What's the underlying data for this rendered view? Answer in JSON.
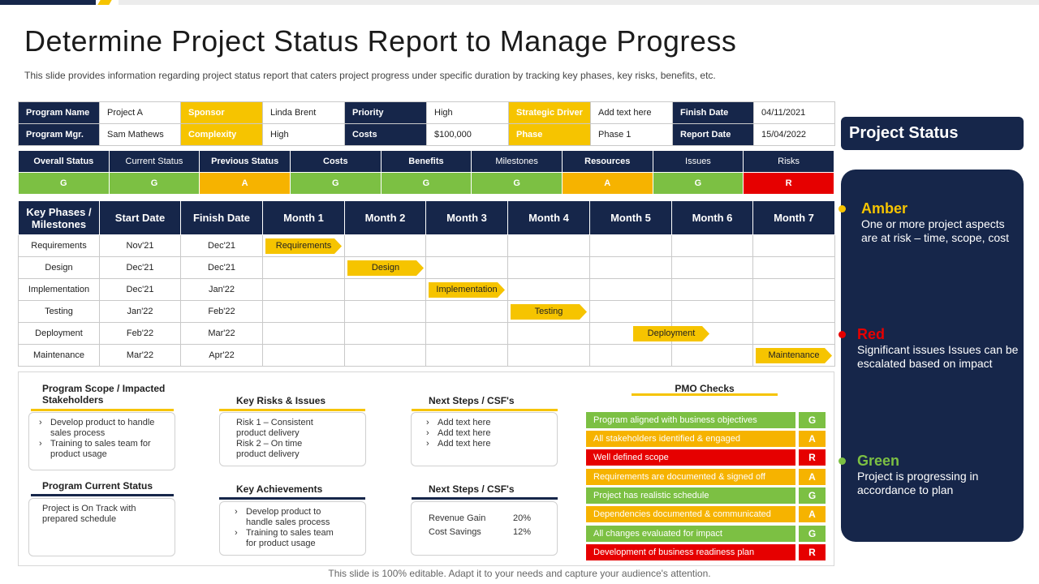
{
  "title": "Determine Project Status Report to Manage Progress",
  "subtitle": "This slide provides  information  regarding  project status report  that caters project progress  under specific duration  by tracking key phases,  key risks, benefits,  etc.",
  "info": {
    "program_name_label": "Program Name",
    "program_name": "Project A",
    "sponsor_label": "Sponsor",
    "sponsor": "Linda Brent",
    "priority_label": "Priority",
    "priority": "High",
    "strategic_driver_label": "Strategic Driver",
    "strategic_driver": "Add text here",
    "finish_date_label": "Finish Date",
    "finish_date": "04/11/2021",
    "program_mgr_label": "Program Mgr.",
    "program_mgr": "Sam Mathews",
    "complexity_label": "Complexity",
    "complexity": "High",
    "costs_label": "Costs",
    "costs": "$100,000",
    "phase_label": "Phase",
    "phase": "Phase 1",
    "report_date_label": "Report Date",
    "report_date": "15/04/2022"
  },
  "status": {
    "headers": [
      "Overall Status",
      "Current Status",
      "Previous Status",
      "Costs",
      "Benefits",
      "Milestones",
      "Resources",
      "Issues",
      "Risks"
    ],
    "values": [
      "G",
      "G",
      "A",
      "G",
      "G",
      "G",
      "A",
      "G",
      "R"
    ]
  },
  "gantt": {
    "headers": [
      "Key Phases / Milestones",
      "Start Date",
      "Finish Date",
      "Month 1",
      "Month 2",
      "Month 3",
      "Month 4",
      "Month 5",
      "Month 6",
      "Month 7"
    ],
    "rows": [
      {
        "phase": "Requirements",
        "start": "Nov'21",
        "finish": "Dec'21",
        "bar": "Requirements"
      },
      {
        "phase": "Design",
        "start": "Dec'21",
        "finish": "Dec'21",
        "bar": "Design"
      },
      {
        "phase": "Implementation",
        "start": "Dec'21",
        "finish": "Jan'22",
        "bar": "Implementation"
      },
      {
        "phase": "Testing",
        "start": "Jan'22",
        "finish": "Feb'22",
        "bar": "Testing"
      },
      {
        "phase": "Deployment",
        "start": "Feb'22",
        "finish": "Mar'22",
        "bar": "Deployment"
      },
      {
        "phase": "Maintenance",
        "start": "Mar'22",
        "finish": "Apr'22",
        "bar": "Maintenance"
      }
    ]
  },
  "bottom": {
    "scope_title": "Program Scope / Impacted Stakeholders",
    "scope_items": [
      "Develop product to handle sales process",
      "Training to sales team for product usage"
    ],
    "current_status_title": "Program Current Status",
    "current_status_text": "Project is On Track with prepared schedule",
    "risks_title": "Key Risks & Issues",
    "risks_text_1": "Risk 1 – Consistent product delivery",
    "risks_text_2": "Risk 2 – On time product delivery",
    "achievements_title": "Key Achievements",
    "achievements_items": [
      "Develop product to handle sales process",
      "Training to sales team for product usage"
    ],
    "next_steps_title": "Next Steps / CSF's",
    "next_steps_items": [
      "Add text here",
      "Add text here",
      "Add text here"
    ],
    "next_steps2_title": "Next Steps / CSF's",
    "kpis": [
      {
        "label": "Revenue Gain",
        "value": "20%"
      },
      {
        "label": "Cost Savings",
        "value": "12%"
      }
    ],
    "pmo_title": "PMO Checks",
    "pmo_checks": [
      {
        "label": "Program aligned with business objectives",
        "status": "G"
      },
      {
        "label": "All stakeholders identified & engaged",
        "status": "A"
      },
      {
        "label": "Well defined scope",
        "status": "R"
      },
      {
        "label": "Requirements are documented & signed off",
        "status": "A"
      },
      {
        "label": "Project has realistic schedule",
        "status": "G"
      },
      {
        "label": "Dependencies documented & communicated",
        "status": "A"
      },
      {
        "label": "All changes evaluated for impact",
        "status": "G"
      },
      {
        "label": "Development of business readiness plan",
        "status": "R"
      }
    ]
  },
  "project_status": {
    "title": "Project Status",
    "legend": [
      {
        "name": "Amber",
        "desc": "One or more project aspects are at risk – time, scope, cost",
        "color": "#f6c400"
      },
      {
        "name": "Red",
        "desc": "Significant issues Issues can be escalated based on impact",
        "color": "#e60000"
      },
      {
        "name": "Green",
        "desc": "Project is progressing in accordance to plan",
        "color": "#7cc043"
      }
    ]
  },
  "footer": "This slide is 100% editable. Adapt it to your needs and capture your audience's attention.",
  "colors": {
    "navy": "#16264a",
    "yellow": "#f6c400",
    "green": "#7cc043",
    "amber": "#f6b300",
    "red": "#e60000"
  }
}
